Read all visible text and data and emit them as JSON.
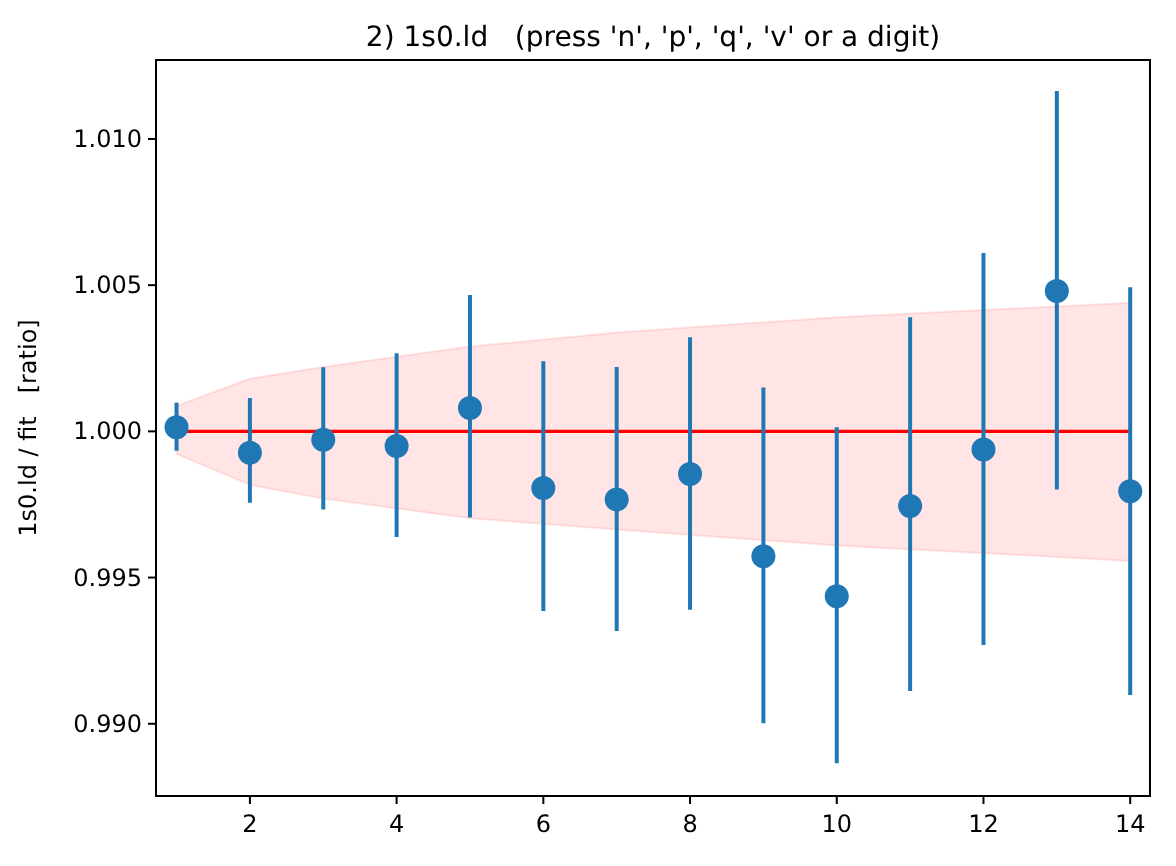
{
  "chart_data": {
    "type": "scatter",
    "title": "2) 1s0.ld   (press 'n', 'p', 'q', 'v' or a digit)",
    "ylabel": "1s0.ld / fit   [ratio]",
    "xlim": [
      0.72,
      14.27
    ],
    "ylim": [
      0.98753,
      1.0127
    ],
    "xticks": [
      2,
      4,
      6,
      8,
      10,
      12,
      14
    ],
    "yticks": [
      {
        "value": 0.99,
        "label": "0.990"
      },
      {
        "value": 0.995,
        "label": "0.995"
      },
      {
        "value": 1.0,
        "label": "1.000"
      },
      {
        "value": 1.005,
        "label": "1.005"
      },
      {
        "value": 1.01,
        "label": "1.010"
      }
    ],
    "grid": false,
    "marker": "circle",
    "series": [
      {
        "type": "line",
        "color": "#ff0000",
        "line_style": "solid",
        "marker": "none",
        "x": [
          1,
          2,
          3,
          5,
          7,
          10,
          14
        ],
        "values": [
          1,
          1,
          1,
          1,
          1,
          1,
          1
        ],
        "lower": [
          0.99923,
          0.99817,
          0.9977,
          0.99703,
          0.99664,
          0.9961,
          0.99557
        ],
        "upper": [
          1.00087,
          1.0018,
          1.0022,
          1.0029,
          1.00338,
          1.0039,
          1.0044
        ]
      },
      {
        "color": "#1f77b4",
        "x": [
          1,
          2,
          3,
          4,
          5,
          6,
          7,
          8,
          9,
          10,
          11,
          12,
          13,
          14
        ],
        "values": [
          1.00014,
          0.99927,
          0.99971,
          0.9995,
          1.0008,
          0.99806,
          0.99767,
          0.99854,
          0.99573,
          0.99436,
          0.99745,
          0.99938,
          1.0048,
          0.99795
        ],
        "errors": [
          [
            0.99934,
            1.00098
          ],
          [
            0.99756,
            1.00114
          ],
          [
            0.99733,
            1.00219
          ],
          [
            0.99639,
            1.00267
          ],
          [
            0.99705,
            1.00466
          ],
          [
            0.99386,
            1.0024
          ],
          [
            0.99317,
            1.0022
          ],
          [
            0.9939,
            1.00322
          ],
          [
            0.99002,
            1.0015
          ],
          [
            0.98865,
            1.00014
          ],
          [
            0.99112,
            1.0039
          ],
          [
            0.99269,
            1.0061
          ],
          [
            0.99801,
            1.01164
          ],
          [
            0.99098,
            1.00493
          ]
        ]
      }
    ]
  }
}
